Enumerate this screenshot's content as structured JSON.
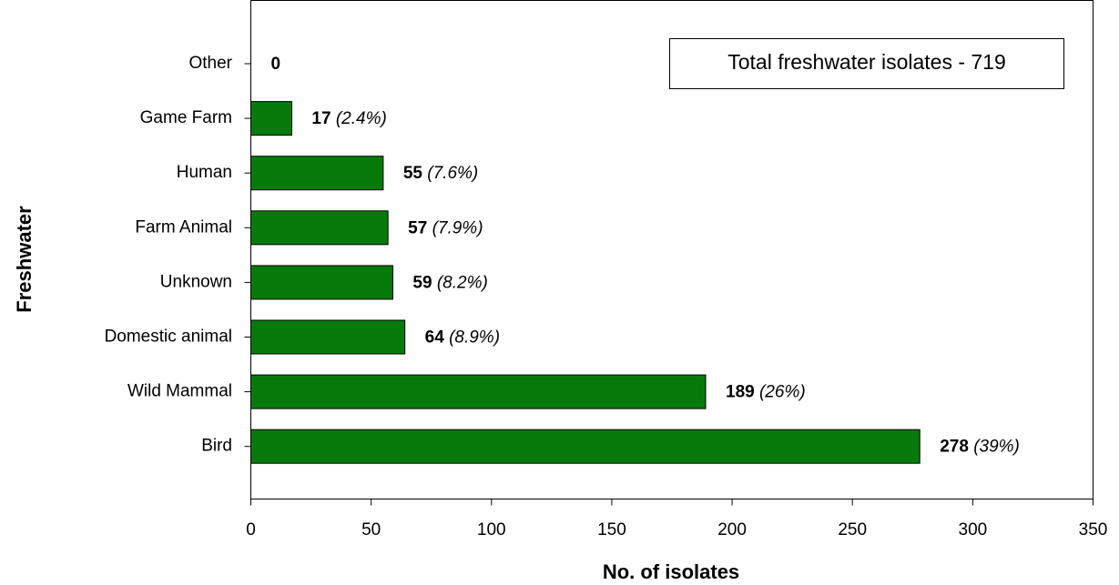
{
  "chart_data": {
    "type": "hbar",
    "annotation": "Total freshwater isolates - 719",
    "x_label": "No. of isolates",
    "y_label": "Freshwater",
    "categories": [
      "Other",
      "Game Farm",
      "Human",
      "Farm Animal",
      "Unknown",
      "Domestic animal",
      "Wild Mammal",
      "Bird"
    ],
    "values": [
      0,
      17,
      55,
      57,
      59,
      64,
      189,
      278
    ],
    "percent_labels": [
      null,
      "(2.4%)",
      "(7.6%)",
      "(7.9%)",
      "(8.2%)",
      "(8.9%)",
      "(26%)",
      "(39%)"
    ],
    "color": "#087a0c",
    "xlim": [
      0,
      350
    ],
    "xticks": [
      0,
      50,
      100,
      150,
      200,
      250,
      300,
      350
    ],
    "grid": false
  }
}
